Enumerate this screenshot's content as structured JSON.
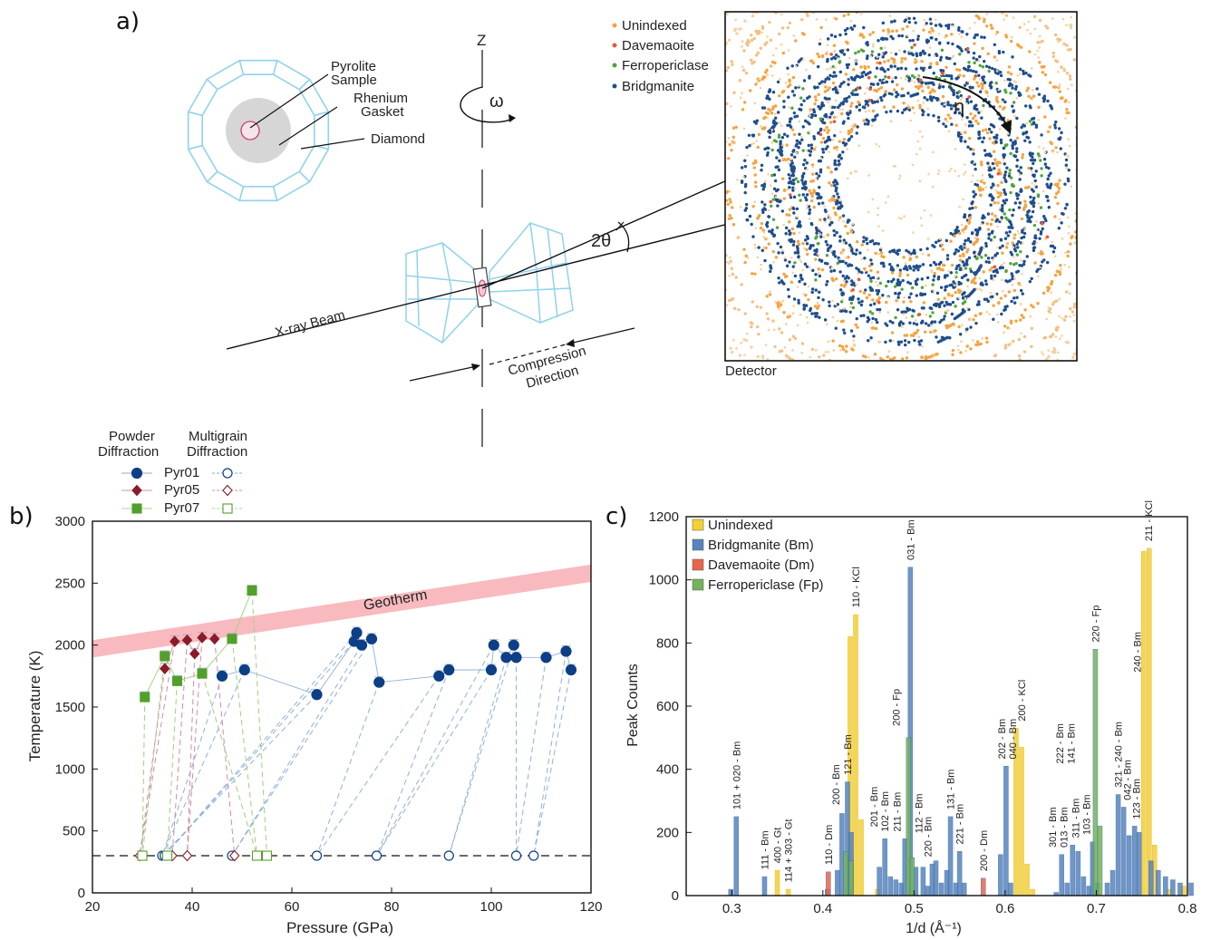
{
  "panels": {
    "a": "a)",
    "b": "b)",
    "c": "c)"
  },
  "panel_a": {
    "labels": {
      "pyrolite": [
        "Pyrolite",
        "Sample"
      ],
      "rhenium": [
        "Rhenium",
        "Gasket"
      ],
      "diamond": "Diamond",
      "z": "Z",
      "omega": "ω",
      "two_theta": "2θ",
      "eta": "η",
      "xray": "X-ray Beam",
      "compression": [
        "Compression",
        "Direction"
      ],
      "detector": "Detector"
    },
    "detector_legend": [
      {
        "name": "Unindexed",
        "color": "#f5a340"
      },
      {
        "name": "Davemaoite",
        "color": "#e8553a"
      },
      {
        "name": "Ferropericlase",
        "color": "#4ea63a"
      },
      {
        "name": "Bridgmanite",
        "color": "#1f4e8c"
      }
    ]
  },
  "legend_b": {
    "col1": [
      "Powder",
      "Diffraction"
    ],
    "col2": [
      "Multigrain",
      "Diffraction"
    ],
    "rows": [
      {
        "name": "Pyr01",
        "color": "#0d3f87"
      },
      {
        "name": "Pyr05",
        "color": "#8b1a2b"
      },
      {
        "name": "Pyr07",
        "color": "#52a02b"
      }
    ]
  },
  "chart_data": [
    {
      "type": "scatter",
      "xlabel": "Pressure (GPa)",
      "ylabel": "Temperature (K)",
      "xlim": [
        20,
        120
      ],
      "ylim": [
        0,
        3000
      ],
      "xticks": [
        20,
        40,
        60,
        80,
        100,
        120
      ],
      "yticks": [
        0,
        500,
        1000,
        1500,
        2000,
        2500,
        3000
      ],
      "annotation": "Geotherm",
      "geotherm_band": {
        "x": [
          20,
          120
        ],
        "y_center": [
          1970,
          2580
        ],
        "width": 140
      },
      "room_temperature": 300,
      "series": [
        {
          "name": "Pyr01",
          "powder": [
            [
              46,
              1750
            ],
            [
              50.5,
              1800
            ],
            [
              65,
              1600
            ],
            [
              72.5,
              2030
            ],
            [
              73,
              2100
            ],
            [
              74,
              2000
            ],
            [
              76,
              2050
            ],
            [
              77.5,
              1700
            ],
            [
              89.5,
              1750
            ],
            [
              91.5,
              1800
            ],
            [
              100,
              1800
            ],
            [
              100.5,
              2000
            ],
            [
              103,
              1900
            ],
            [
              104.5,
              2000
            ],
            [
              105,
              1900
            ],
            [
              111,
              1900
            ],
            [
              115,
              1950
            ],
            [
              116,
              1800
            ]
          ],
          "multigrain": [
            [
              34,
              300
            ],
            [
              34.5,
              300
            ],
            [
              48,
              300
            ],
            [
              65,
              300
            ],
            [
              77,
              300
            ],
            [
              91.5,
              300
            ],
            [
              105,
              300
            ],
            [
              108.5,
              300
            ]
          ]
        },
        {
          "name": "Pyr05",
          "powder": [
            [
              34.5,
              1810
            ],
            [
              36.5,
              2030
            ],
            [
              39,
              2040
            ],
            [
              40.5,
              1930
            ],
            [
              42,
              2060
            ],
            [
              44.5,
              2050
            ]
          ],
          "multigrain": [
            [
              29.5,
              300
            ],
            [
              36,
              300
            ],
            [
              39,
              300
            ],
            [
              48.5,
              300
            ]
          ]
        },
        {
          "name": "Pyr07",
          "powder": [
            [
              30.5,
              1580
            ],
            [
              34.5,
              1910
            ],
            [
              37,
              1710
            ],
            [
              42,
              1770
            ],
            [
              48,
              2050
            ],
            [
              52,
              2440
            ]
          ],
          "multigrain": [
            [
              30,
              300
            ],
            [
              35,
              300
            ],
            [
              53,
              300
            ],
            [
              55,
              300
            ]
          ]
        }
      ]
    },
    {
      "type": "bar",
      "xlabel": "1/d (Å⁻¹)",
      "ylabel": "Peak Counts",
      "xlim": [
        0.25,
        0.8
      ],
      "ylim": [
        0,
        1200
      ],
      "xticks": [
        0.3,
        0.4,
        0.5,
        0.6,
        0.7,
        0.8
      ],
      "yticks": [
        0,
        200,
        400,
        600,
        800,
        1000,
        1200
      ],
      "series": [
        {
          "name": "Unindexed",
          "color": "#f5d033",
          "bars": [
            [
              0.35,
              80
            ],
            [
              0.362,
              20
            ],
            [
              0.43,
              820
            ],
            [
              0.436,
              890
            ],
            [
              0.442,
              240
            ],
            [
              0.46,
              20
            ],
            [
              0.612,
              530
            ],
            [
              0.618,
              470
            ],
            [
              0.624,
              100
            ],
            [
              0.63,
              20
            ],
            [
              0.752,
              1090
            ],
            [
              0.758,
              1100
            ],
            [
              0.764,
              160
            ],
            [
              0.78,
              20
            ],
            [
              0.796,
              30
            ]
          ]
        },
        {
          "name": "Bridgmanite (Bm)",
          "color": "#5684bd",
          "bars": [
            [
              0.299,
              20
            ],
            [
              0.305,
              250
            ],
            [
              0.336,
              60
            ],
            [
              0.405,
              20
            ],
            [
              0.416,
              80
            ],
            [
              0.421,
              260
            ],
            [
              0.427,
              360
            ],
            [
              0.431,
              200
            ],
            [
              0.462,
              90
            ],
            [
              0.468,
              180
            ],
            [
              0.474,
              60
            ],
            [
              0.48,
              50
            ],
            [
              0.486,
              40
            ],
            [
              0.49,
              180
            ],
            [
              0.496,
              1040
            ],
            [
              0.502,
              90
            ],
            [
              0.51,
              90
            ],
            [
              0.515,
              30
            ],
            [
              0.52,
              100
            ],
            [
              0.524,
              110
            ],
            [
              0.53,
              40
            ],
            [
              0.536,
              80
            ],
            [
              0.54,
              250
            ],
            [
              0.546,
              40
            ],
            [
              0.55,
              140
            ],
            [
              0.555,
              40
            ],
            [
              0.595,
              130
            ],
            [
              0.601,
              410
            ],
            [
              0.606,
              40
            ],
            [
              0.656,
              10
            ],
            [
              0.662,
              130
            ],
            [
              0.668,
              40
            ],
            [
              0.674,
              160
            ],
            [
              0.68,
              140
            ],
            [
              0.686,
              60
            ],
            [
              0.692,
              30
            ],
            [
              0.696,
              170
            ],
            [
              0.701,
              40
            ],
            [
              0.712,
              40
            ],
            [
              0.718,
              80
            ],
            [
              0.724,
              320
            ],
            [
              0.73,
              280
            ],
            [
              0.736,
              190
            ],
            [
              0.742,
              220
            ],
            [
              0.747,
              200
            ],
            [
              0.76,
              110
            ],
            [
              0.768,
              80
            ],
            [
              0.776,
              60
            ],
            [
              0.784,
              50
            ],
            [
              0.792,
              40
            ],
            [
              0.804,
              40
            ]
          ]
        },
        {
          "name": "Davemaoite (Dm)",
          "color": "#e8664a",
          "bars": [
            [
              0.406,
              75
            ],
            [
              0.576,
              55
            ]
          ]
        },
        {
          "name": "Ferropericlase (Fp)",
          "color": "#74b35a",
          "bars": [
            [
              0.425,
              140
            ],
            [
              0.431,
              110
            ],
            [
              0.494,
              500
            ],
            [
              0.498,
              120
            ],
            [
              0.699,
              780
            ],
            [
              0.704,
              220
            ]
          ]
        }
      ],
      "annotations": [
        {
          "text": "101 + 020 - Bm",
          "x": 0.305,
          "y": 255,
          "color": "#1f4e8c"
        },
        {
          "text": "111 - Bm",
          "x": 0.336,
          "y": 65,
          "color": "#1f4e8c"
        },
        {
          "text": "400 - Gt",
          "x": 0.35,
          "y": 85,
          "color": "#d9b300"
        },
        {
          "text": "114 + 303 - Gt",
          "x": 0.362,
          "y": 25,
          "color": "#d9b300"
        },
        {
          "text": "110 - Dm",
          "x": 0.406,
          "y": 80,
          "color": "#d8432b"
        },
        {
          "text": "200 - Bm",
          "x": 0.414,
          "y": 270,
          "color": "#1f4e8c"
        },
        {
          "text": "121 - Bm",
          "x": 0.427,
          "y": 365,
          "color": "#1f4e8c"
        },
        {
          "text": "110 - KCl",
          "x": 0.436,
          "y": 895,
          "color": "#d9b300"
        },
        {
          "text": "201 - Bm",
          "x": 0.456,
          "y": 200,
          "color": "#1f4e8c"
        },
        {
          "text": "102 - Bm",
          "x": 0.468,
          "y": 185,
          "color": "#1f4e8c"
        },
        {
          "text": "211 - Bm",
          "x": 0.481,
          "y": 185,
          "color": "#1f4e8c"
        },
        {
          "text": "200 - Fp",
          "x": 0.48,
          "y": 520,
          "color": "#3c8f2a"
        },
        {
          "text": "031 - Bm",
          "x": 0.496,
          "y": 1045,
          "color": "#1f4e8c"
        },
        {
          "text": "112 - Bm",
          "x": 0.505,
          "y": 180,
          "color": "#1f4e8c"
        },
        {
          "text": "220 - Bm",
          "x": 0.515,
          "y": 105,
          "color": "#1f4e8c"
        },
        {
          "text": "131 - Bm",
          "x": 0.54,
          "y": 255,
          "color": "#1f4e8c"
        },
        {
          "text": "221 - Bm",
          "x": 0.55,
          "y": 145,
          "color": "#1f4e8c"
        },
        {
          "text": "200 - Dm",
          "x": 0.576,
          "y": 60,
          "color": "#d8432b"
        },
        {
          "text": "202 - Bm",
          "x": 0.596,
          "y": 415,
          "color": "#1f4e8c"
        },
        {
          "text": "040 - Bm",
          "x": 0.608,
          "y": 415,
          "color": "#1f4e8c"
        },
        {
          "text": "200 - KCl",
          "x": 0.618,
          "y": 535,
          "color": "#d9b300"
        },
        {
          "text": "301 - Bm",
          "x": 0.652,
          "y": 135,
          "color": "#1f4e8c"
        },
        {
          "text": "013 - Bm",
          "x": 0.664,
          "y": 135,
          "color": "#1f4e8c"
        },
        {
          "text": "222 - Bm",
          "x": 0.66,
          "y": 400,
          "color": "#1f4e8c"
        },
        {
          "text": "141 - Bm",
          "x": 0.672,
          "y": 400,
          "color": "#1f4e8c"
        },
        {
          "text": "311 - Bm",
          "x": 0.677,
          "y": 165,
          "color": "#1f4e8c"
        },
        {
          "text": "103 - Bm",
          "x": 0.689,
          "y": 175,
          "color": "#1f4e8c"
        },
        {
          "text": "220 - Fp",
          "x": 0.699,
          "y": 785,
          "color": "#3c8f2a"
        },
        {
          "text": "321 - 240 - Bm",
          "x": 0.724,
          "y": 325,
          "color": "#1f4e8c"
        },
        {
          "text": "042 - Bm",
          "x": 0.734,
          "y": 285,
          "color": "#1f4e8c"
        },
        {
          "text": "123 - Bm",
          "x": 0.744,
          "y": 225,
          "color": "#1f4e8c"
        },
        {
          "text": "240 - Bm",
          "x": 0.745,
          "y": 690,
          "color": "#1f4e8c"
        },
        {
          "text": "211 - KCl",
          "x": 0.757,
          "y": 1105,
          "color": "#d9b300"
        }
      ]
    }
  ]
}
